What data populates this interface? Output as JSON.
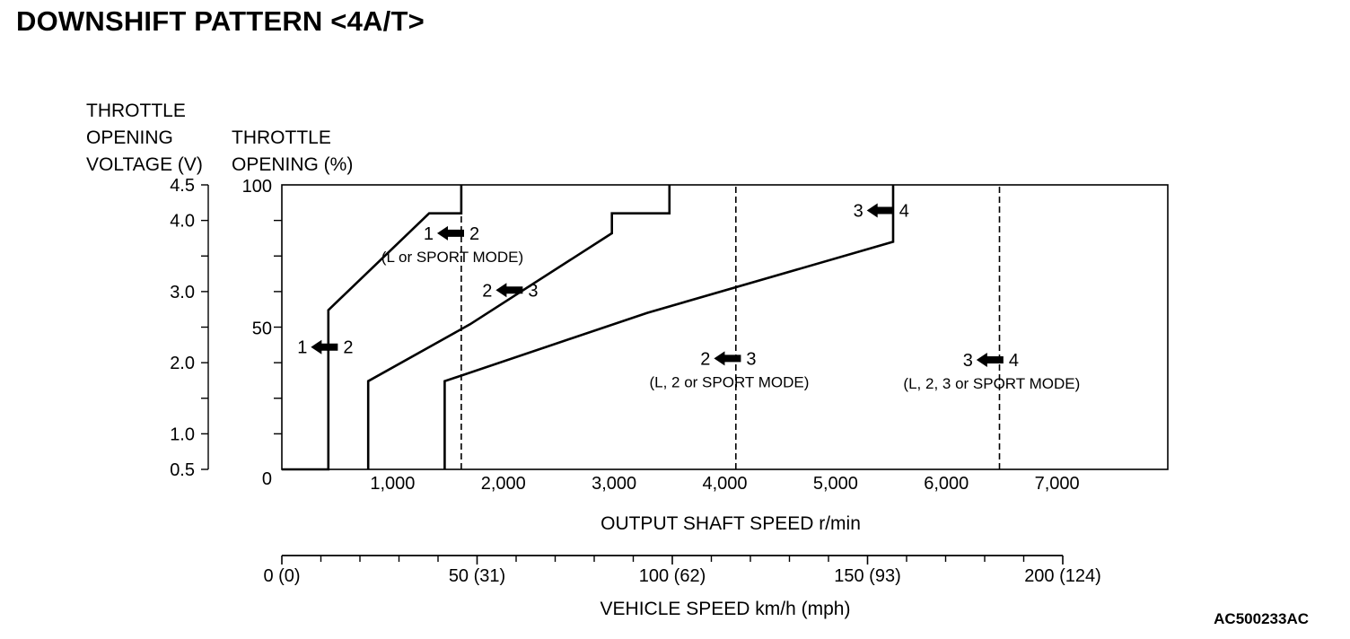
{
  "title": "DOWNSHIFT PATTERN <4A/T>",
  "figure_code": "AC500233AC",
  "chart_data": {
    "type": "line",
    "ylabel_voltage": [
      "THROTTLE",
      "OPENING",
      "VOLTAGE (V)"
    ],
    "ylabel_percent": [
      "THROTTLE",
      "OPENING (%)"
    ],
    "xlabel": "OUTPUT SHAFT SPEED r/min",
    "xlabel2": "VEHICLE SPEED km/h (mph)",
    "xlim": [
      0,
      8000
    ],
    "ylim": [
      0,
      100
    ],
    "voltage_ticks": [
      {
        "value": 0.5,
        "label": "0.5"
      },
      {
        "value": 1.0,
        "label": "1.0"
      },
      {
        "value": 2.0,
        "label": "2.0"
      },
      {
        "value": 3.0,
        "label": "3.0"
      },
      {
        "value": 4.0,
        "label": "4.0"
      },
      {
        "value": 4.5,
        "label": "4.5"
      }
    ],
    "voltage_minor_ticks": [
      1.5,
      2.5,
      3.5
    ],
    "voltage_range": [
      0.5,
      4.5
    ],
    "percent_ticks": [
      {
        "value": 0,
        "label": "0"
      },
      {
        "value": 50,
        "label": "50"
      },
      {
        "value": 100,
        "label": "100"
      }
    ],
    "percent_minor_ticks": [
      12.5,
      25,
      37.5,
      62.5,
      75,
      87.5
    ],
    "x_ticks": [
      {
        "value": 1000,
        "label": "1,000"
      },
      {
        "value": 2000,
        "label": "2,000"
      },
      {
        "value": 3000,
        "label": "3,000"
      },
      {
        "value": 4000,
        "label": "4,000"
      },
      {
        "value": 5000,
        "label": "5,000"
      },
      {
        "value": 6000,
        "label": "6,000"
      },
      {
        "value": 7000,
        "label": "7,000"
      }
    ],
    "speed_scale": {
      "range_kmh": [
        0,
        200
      ],
      "ticks": [
        {
          "value": 0,
          "label": "0 (0)"
        },
        {
          "value": 50,
          "label": "50 (31)"
        },
        {
          "value": 100,
          "label": "100 (62)"
        },
        {
          "value": 150,
          "label": "150 (93)"
        },
        {
          "value": 200,
          "label": "200 (124)"
        }
      ],
      "minor_ticks": [
        10,
        20,
        30,
        40,
        60,
        70,
        80,
        90,
        110,
        120,
        130,
        140,
        160,
        170,
        180,
        190
      ]
    },
    "series": [
      {
        "style": "solid",
        "points": [
          [
            0,
            0
          ],
          [
            420,
            0
          ],
          [
            420,
            56
          ],
          [
            1330,
            90
          ],
          [
            1620,
            90
          ],
          [
            1620,
            100
          ]
        ]
      },
      {
        "style": "solid",
        "points": [
          [
            780,
            0
          ],
          [
            780,
            31
          ],
          [
            1700,
            51
          ],
          [
            2980,
            83
          ],
          [
            2980,
            90
          ],
          [
            3500,
            90
          ],
          [
            3500,
            100
          ]
        ]
      },
      {
        "style": "solid",
        "points": [
          [
            1470,
            0
          ],
          [
            1470,
            31
          ],
          [
            3300,
            55
          ],
          [
            5520,
            80
          ],
          [
            5520,
            100
          ]
        ]
      },
      {
        "style": "dashed",
        "points": [
          [
            1620,
            0
          ],
          [
            1620,
            90
          ]
        ]
      },
      {
        "style": "dashed",
        "points": [
          [
            4100,
            0
          ],
          [
            4100,
            100
          ]
        ]
      },
      {
        "style": "dashed",
        "points": [
          [
            6480,
            0
          ],
          [
            6480,
            100
          ]
        ]
      }
    ],
    "annotations": [
      {
        "x": 400,
        "y": 43,
        "from": "1",
        "to": "2"
      },
      {
        "x": 1540,
        "y": 83,
        "from": "1",
        "to": "2",
        "sub": "(L or SPORT MODE)"
      },
      {
        "x": 2070,
        "y": 63,
        "from": "2",
        "to": "3"
      },
      {
        "x": 4040,
        "y": 39,
        "from": "2",
        "to": "3",
        "sub": "(L, 2 or SPORT MODE)"
      },
      {
        "x": 5420,
        "y": 91,
        "from": "3",
        "to": "4"
      },
      {
        "x": 6410,
        "y": 38.5,
        "from": "3",
        "to": "4",
        "sub": "(L, 2, 3 or SPORT MODE)"
      }
    ]
  }
}
